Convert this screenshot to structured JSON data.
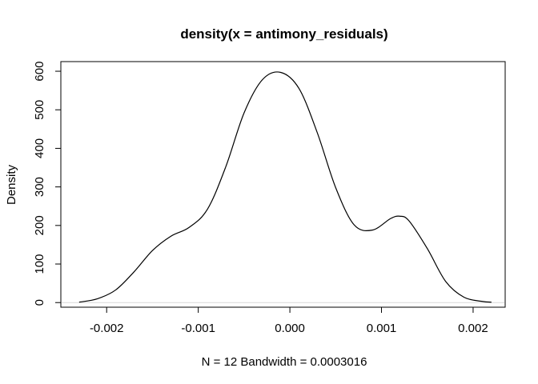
{
  "chart_data": {
    "type": "line",
    "title": "density(x = antimony_residuals)",
    "xlabel": "N = 12   Bandwidth = 0.0003016",
    "ylabel": "Density",
    "xlim": [
      -0.0025,
      0.00235
    ],
    "ylim": [
      -12,
      625
    ],
    "x_ticks": [
      -0.002,
      -0.001,
      0.0,
      0.001,
      0.002
    ],
    "x_tick_labels": [
      "-0.002",
      "-0.001",
      "0.000",
      "0.001",
      "0.002"
    ],
    "y_ticks": [
      0,
      100,
      200,
      300,
      400,
      500,
      600
    ],
    "y_tick_labels": [
      "0",
      "100",
      "200",
      "300",
      "400",
      "500",
      "600"
    ],
    "grid": false,
    "line_color": "#000000",
    "zero_line_color": "#d9d9d9",
    "series": [
      {
        "x": [
          -0.0023,
          -0.0021,
          -0.0019,
          -0.0017,
          -0.0015,
          -0.0013,
          -0.0011,
          -0.0009,
          -0.0007,
          -0.0005,
          -0.0003,
          -0.0001,
          0.0001,
          0.0003,
          0.0005,
          0.0007,
          0.0009,
          0.0011,
          0.0012,
          0.0013,
          0.0015,
          0.0017,
          0.0019,
          0.0021,
          0.0022
        ],
        "y": [
          1,
          10,
          33,
          80,
          135,
          172,
          195,
          242,
          352,
          492,
          578,
          597,
          555,
          440,
          298,
          202,
          188,
          218,
          224,
          212,
          140,
          55,
          14,
          3,
          1
        ]
      }
    ]
  }
}
